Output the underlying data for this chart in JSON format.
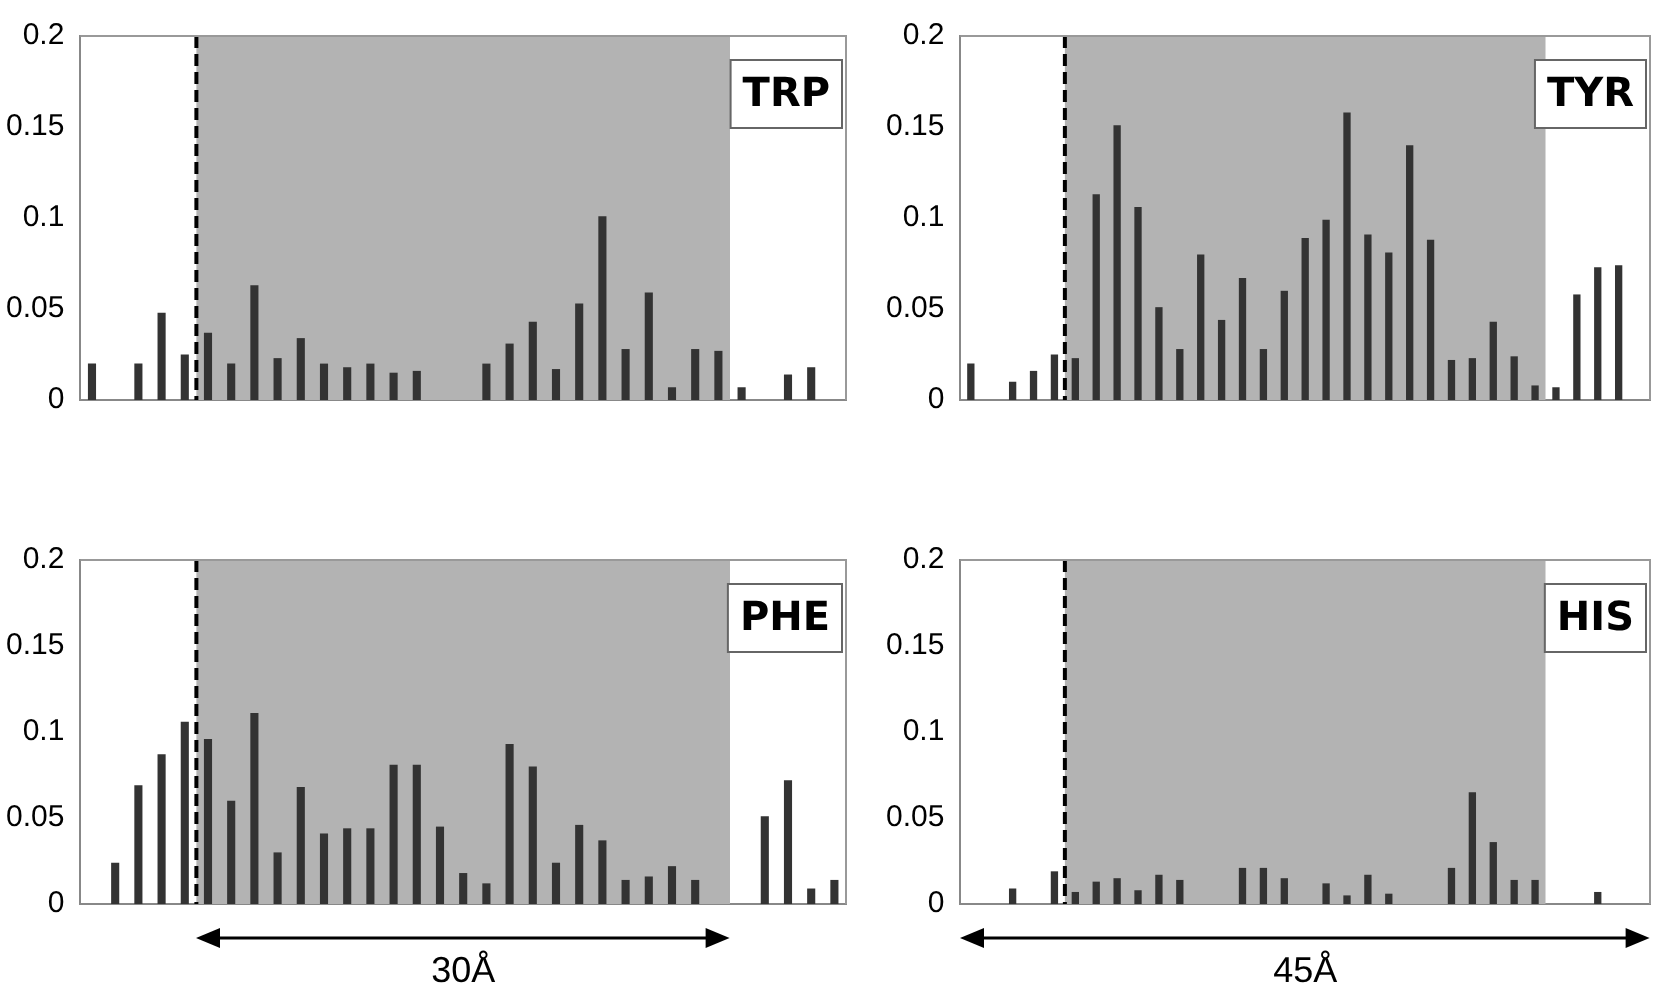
{
  "chart_data": [
    {
      "type": "bar",
      "title": "TRP",
      "categories": [
        null,
        null,
        null,
        null,
        null,
        null,
        null,
        null,
        null,
        null,
        null,
        null,
        null,
        null,
        null,
        null,
        null,
        null,
        null,
        null,
        null,
        null,
        null,
        null,
        null,
        null,
        null,
        null,
        null,
        null,
        null,
        null,
        null
      ],
      "values": [
        0.02,
        null,
        0.02,
        0.048,
        0.025,
        0.037,
        0.02,
        0.063,
        0.023,
        0.034,
        0.02,
        0.018,
        0.02,
        0.015,
        0.016,
        null,
        null,
        0.02,
        0.031,
        0.043,
        0.017,
        0.053,
        0.101,
        0.028,
        0.059,
        0.007,
        0.028,
        0.027,
        0.007,
        null,
        0.014,
        0.018,
        null
      ],
      "color": "#333333",
      "ylim": [
        0,
        0.2
      ],
      "yticks": [
        0,
        0.05,
        0.1,
        0.15,
        0.2
      ]
    },
    {
      "type": "bar",
      "title": "TYR",
      "categories": [
        null,
        null,
        null,
        null,
        null,
        null,
        null,
        null,
        null,
        null,
        null,
        null,
        null,
        null,
        null,
        null,
        null,
        null,
        null,
        null,
        null,
        null,
        null,
        null,
        null,
        null,
        null,
        null,
        null,
        null,
        null,
        null,
        null
      ],
      "values": [
        0.02,
        null,
        0.01,
        0.016,
        0.025,
        0.023,
        0.113,
        0.151,
        0.106,
        0.051,
        0.028,
        0.08,
        0.044,
        0.067,
        0.028,
        0.06,
        0.089,
        0.099,
        0.158,
        0.091,
        0.081,
        0.14,
        0.088,
        0.022,
        0.023,
        0.043,
        0.024,
        0.008,
        0.007,
        0.058,
        0.073,
        0.074,
        null
      ],
      "color": "#333333",
      "ylim": [
        0,
        0.2
      ],
      "yticks": [
        0,
        0.05,
        0.1,
        0.15,
        0.2
      ]
    },
    {
      "type": "bar",
      "title": "PHE",
      "categories": [
        null,
        null,
        null,
        null,
        null,
        null,
        null,
        null,
        null,
        null,
        null,
        null,
        null,
        null,
        null,
        null,
        null,
        null,
        null,
        null,
        null,
        null,
        null,
        null,
        null,
        null,
        null,
        null,
        null,
        null,
        null,
        null,
        null
      ],
      "values": [
        null,
        0.024,
        0.069,
        0.087,
        0.106,
        0.096,
        0.06,
        0.111,
        0.03,
        0.068,
        0.041,
        0.044,
        0.044,
        0.081,
        0.081,
        0.045,
        0.018,
        0.012,
        0.093,
        0.08,
        0.024,
        0.046,
        0.037,
        0.014,
        0.016,
        0.022,
        0.014,
        null,
        null,
        0.051,
        0.072,
        0.009,
        0.014
      ],
      "color": "#333333",
      "ylim": [
        0,
        0.2
      ],
      "yticks": [
        0,
        0.05,
        0.1,
        0.15,
        0.2
      ],
      "annotations": [
        "30Å"
      ]
    },
    {
      "type": "bar",
      "title": "HIS",
      "categories": [
        null,
        null,
        null,
        null,
        null,
        null,
        null,
        null,
        null,
        null,
        null,
        null,
        null,
        null,
        null,
        null,
        null,
        null,
        null,
        null,
        null,
        null,
        null,
        null,
        null,
        null,
        null,
        null,
        null,
        null,
        null,
        null,
        null
      ],
      "values": [
        null,
        null,
        0.009,
        null,
        0.019,
        0.007,
        0.013,
        0.015,
        0.008,
        0.017,
        0.014,
        null,
        null,
        0.021,
        0.021,
        0.015,
        null,
        0.012,
        0.005,
        0.017,
        0.006,
        null,
        null,
        0.021,
        0.065,
        0.036,
        0.014,
        0.014,
        null,
        null,
        0.007,
        null,
        null
      ],
      "color": "#333333",
      "ylim": [
        0,
        0.2
      ],
      "yticks": [
        0,
        0.05,
        0.1,
        0.15,
        0.2
      ],
      "annotations": [
        "45Å"
      ]
    }
  ]
}
